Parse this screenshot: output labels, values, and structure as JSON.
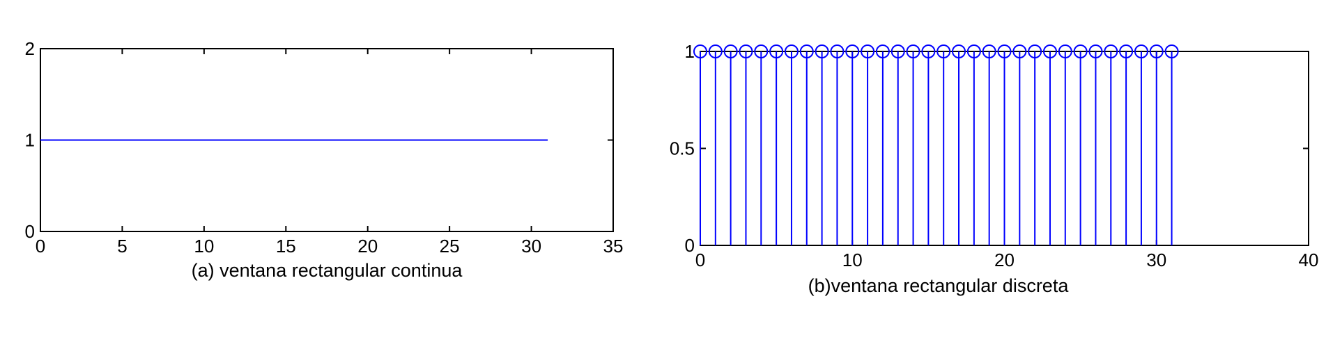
{
  "chart_data": [
    {
      "type": "line",
      "title": "",
      "xlabel": "(a) ventana rectangular continua",
      "ylabel": "",
      "xlim": [
        0,
        35
      ],
      "ylim": [
        0,
        2
      ],
      "xticks": [
        0,
        5,
        10,
        15,
        20,
        25,
        30,
        35
      ],
      "yticks": [
        0,
        1,
        2
      ],
      "grid": false,
      "color": "#0000ff",
      "series": [
        {
          "x": [
            0,
            31
          ],
          "y": [
            1,
            1
          ]
        }
      ]
    },
    {
      "type": "stem",
      "title": "",
      "xlabel": "(b)ventana rectangular discreta",
      "ylabel": "",
      "xlim": [
        0,
        40
      ],
      "ylim": [
        0,
        1
      ],
      "xticks": [
        0,
        10,
        20,
        30,
        40
      ],
      "yticks": [
        0,
        0.5,
        1
      ],
      "grid": false,
      "color": "#0000ff",
      "series": [
        {
          "x": [
            0,
            1,
            2,
            3,
            4,
            5,
            6,
            7,
            8,
            9,
            10,
            11,
            12,
            13,
            14,
            15,
            16,
            17,
            18,
            19,
            20,
            21,
            22,
            23,
            24,
            25,
            26,
            27,
            28,
            29,
            30,
            31
          ],
          "y": [
            1,
            1,
            1,
            1,
            1,
            1,
            1,
            1,
            1,
            1,
            1,
            1,
            1,
            1,
            1,
            1,
            1,
            1,
            1,
            1,
            1,
            1,
            1,
            1,
            1,
            1,
            1,
            1,
            1,
            1,
            1,
            1
          ]
        }
      ]
    }
  ]
}
